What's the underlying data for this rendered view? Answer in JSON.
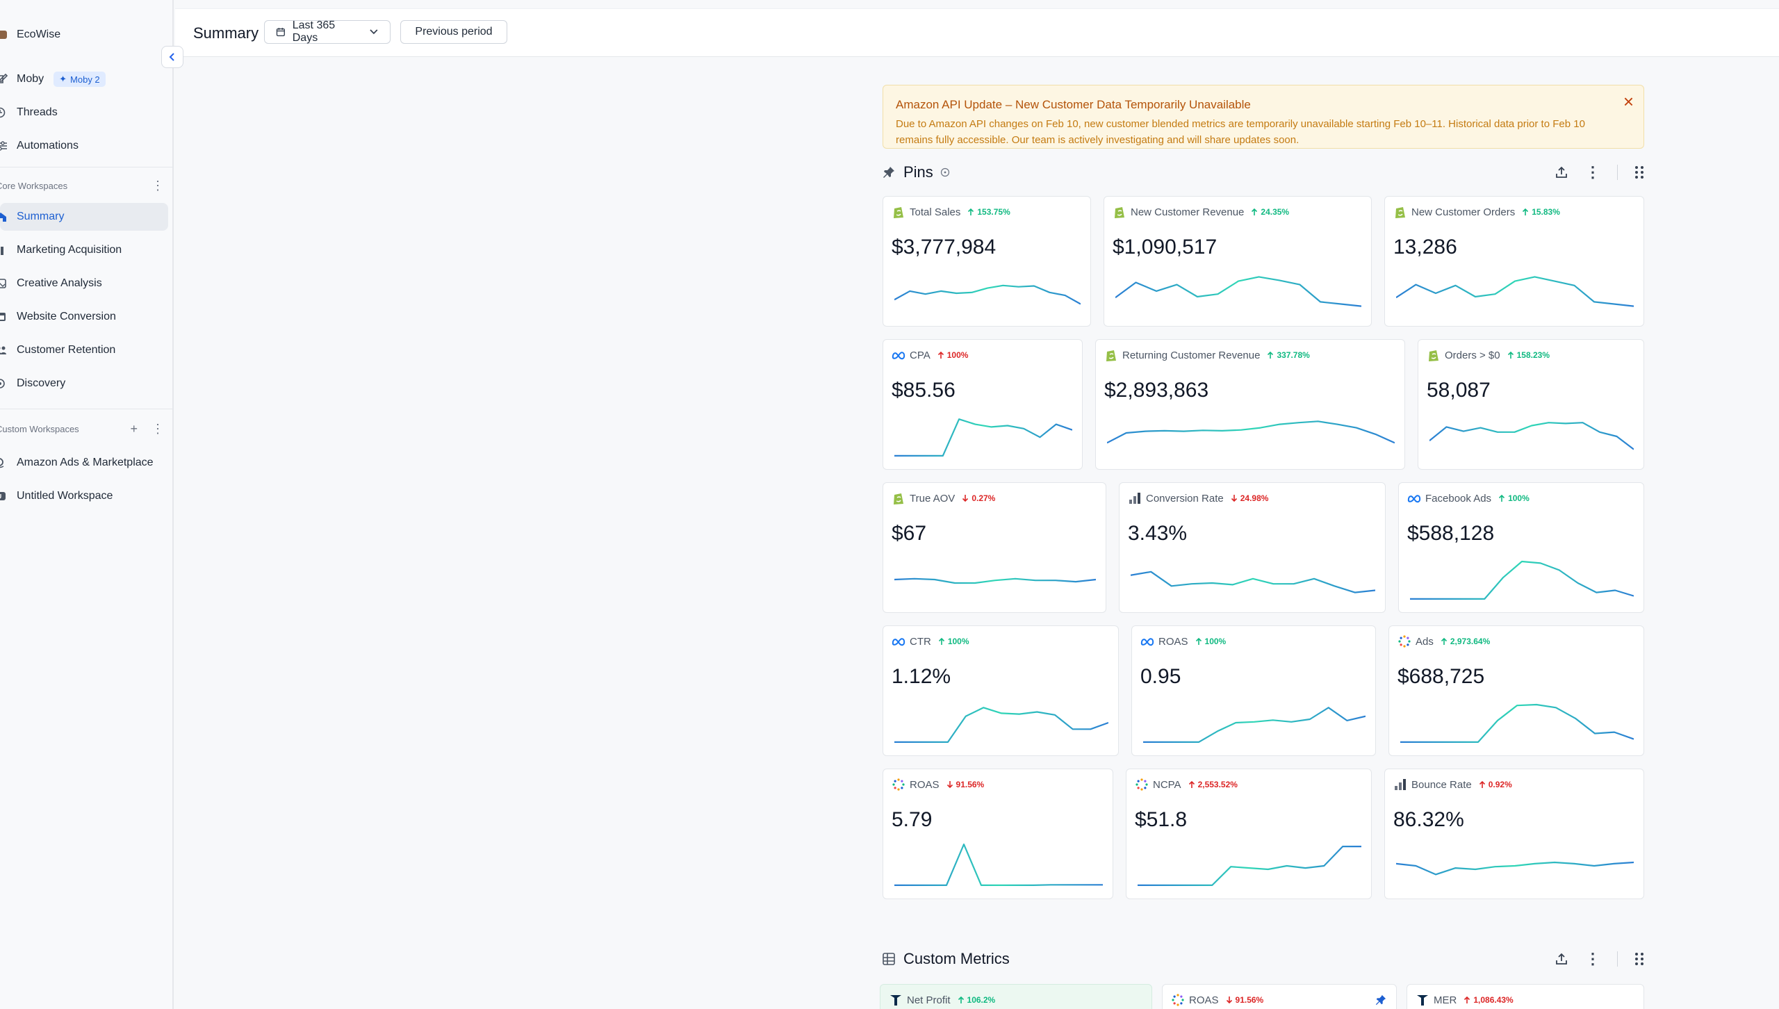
{
  "app": {
    "name": "EcoWise"
  },
  "sidebar": {
    "items": [
      {
        "label": "Moby",
        "badge": "Moby 2"
      },
      {
        "label": "Threads"
      },
      {
        "label": "Automations"
      }
    ],
    "core_title": "Core Workspaces",
    "core_items": [
      {
        "label": "Summary"
      },
      {
        "label": "Marketing Acquisition"
      },
      {
        "label": "Creative Analysis"
      },
      {
        "label": "Website Conversion"
      },
      {
        "label": "Customer Retention"
      },
      {
        "label": "Discovery"
      }
    ],
    "custom_title": "Custom Workspaces",
    "custom_items": [
      {
        "label": "Amazon Ads & Marketplace"
      },
      {
        "label": "Untitled Workspace"
      }
    ]
  },
  "header": {
    "title": "Summary",
    "date_range": "Last 365 Days",
    "compare": "Previous period"
  },
  "banner": {
    "title": "Amazon API Update – New Customer Data Temporarily Unavailable",
    "body": "Due to Amazon API changes on Feb 10, new customer blended metrics are temporarily unavailable starting Feb 10–11. Historical data prior to Feb 10 remains fully accessible. Our team is actively investigating and will share updates soon."
  },
  "pins": {
    "title": "Pins",
    "cards": [
      {
        "label": "Total Sales",
        "change": "153.75%",
        "dir": "up",
        "value": "$3,777,984",
        "source": "shopify",
        "trend": [
          0.35,
          0.55,
          0.48,
          0.55,
          0.5,
          0.52,
          0.62,
          0.68,
          0.65,
          0.67,
          0.52,
          0.45,
          0.25
        ]
      },
      {
        "label": "New Customer Revenue",
        "change": "24.35%",
        "dir": "up",
        "value": "$1,090,517",
        "source": "shopify",
        "trend": [
          0.4,
          0.75,
          0.55,
          0.7,
          0.42,
          0.48,
          0.78,
          0.88,
          0.8,
          0.7,
          0.3,
          0.25,
          0.2
        ]
      },
      {
        "label": "New Customer Orders",
        "change": "15.83%",
        "dir": "up",
        "value": "13,286",
        "source": "shopify",
        "trend": [
          0.4,
          0.7,
          0.5,
          0.68,
          0.42,
          0.48,
          0.78,
          0.88,
          0.78,
          0.68,
          0.3,
          0.25,
          0.2
        ]
      },
      {
        "label": "CPA",
        "change": "100%",
        "dir": "upbad",
        "value": "$85.56",
        "source": "meta",
        "trend": [
          0.05,
          0.05,
          0.05,
          0.05,
          0.9,
          0.78,
          0.72,
          0.75,
          0.68,
          0.48,
          0.78,
          0.65
        ]
      },
      {
        "label": "Returning Customer Revenue",
        "change": "337.78%",
        "dir": "up",
        "value": "$2,893,863",
        "source": "shopify",
        "trend": [
          0.35,
          0.58,
          0.62,
          0.63,
          0.62,
          0.64,
          0.63,
          0.65,
          0.7,
          0.78,
          0.82,
          0.85,
          0.78,
          0.7,
          0.55,
          0.35
        ]
      },
      {
        "label": "Orders > $0",
        "change": "158.23%",
        "dir": "up",
        "value": "58,087",
        "source": "shopify",
        "trend": [
          0.4,
          0.72,
          0.62,
          0.7,
          0.6,
          0.6,
          0.75,
          0.82,
          0.8,
          0.82,
          0.6,
          0.5,
          0.2
        ]
      },
      {
        "label": "True AOV",
        "change": "0.27%",
        "dir": "down",
        "value": "$67",
        "source": "shopify",
        "trend": [
          0.5,
          0.52,
          0.5,
          0.42,
          0.42,
          0.48,
          0.52,
          0.48,
          0.48,
          0.45,
          0.5
        ]
      },
      {
        "label": "Conversion Rate",
        "change": "24.98%",
        "dir": "down",
        "value": "3.43%",
        "source": "ga",
        "trend": [
          0.6,
          0.68,
          0.35,
          0.4,
          0.42,
          0.38,
          0.52,
          0.4,
          0.4,
          0.52,
          0.35,
          0.2,
          0.25
        ]
      },
      {
        "label": "Facebook Ads",
        "change": "100%",
        "dir": "up",
        "value": "$588,128",
        "source": "meta",
        "trend": [
          0.05,
          0.05,
          0.05,
          0.05,
          0.05,
          0.55,
          0.92,
          0.88,
          0.72,
          0.42,
          0.2,
          0.25,
          0.12
        ]
      },
      {
        "label": "CTR",
        "change": "100%",
        "dir": "up",
        "value": "1.12%",
        "source": "meta",
        "trend": [
          0.05,
          0.05,
          0.05,
          0.05,
          0.65,
          0.85,
          0.72,
          0.7,
          0.75,
          0.68,
          0.35,
          0.35,
          0.5
        ]
      },
      {
        "label": "ROAS",
        "change": "100%",
        "dir": "up",
        "value": "0.95",
        "source": "meta",
        "trend": [
          0.05,
          0.05,
          0.05,
          0.05,
          0.3,
          0.5,
          0.52,
          0.56,
          0.52,
          0.58,
          0.85,
          0.55,
          0.65
        ]
      },
      {
        "label": "Ads",
        "change": "2,973.64%",
        "dir": "up",
        "value": "$688,725",
        "source": "dots",
        "trend": [
          0.05,
          0.05,
          0.05,
          0.05,
          0.05,
          0.55,
          0.9,
          0.92,
          0.85,
          0.6,
          0.25,
          0.28,
          0.12
        ]
      },
      {
        "label": "ROAS",
        "change": "91.56%",
        "dir": "down",
        "value": "5.79",
        "source": "dots",
        "trend": [
          0.05,
          0.05,
          0.05,
          0.05,
          1.0,
          0.05,
          0.05,
          0.05,
          0.05,
          0.06,
          0.06,
          0.06,
          0.06
        ]
      },
      {
        "label": "NCPA",
        "change": "2,553.52%",
        "dir": "upbad",
        "value": "$51.8",
        "source": "dots",
        "trend": [
          0.05,
          0.05,
          0.05,
          0.05,
          0.05,
          0.48,
          0.45,
          0.42,
          0.5,
          0.45,
          0.5,
          0.95,
          0.95
        ]
      },
      {
        "label": "Bounce Rate",
        "change": "0.92%",
        "dir": "upbad",
        "value": "86.32%",
        "source": "ga",
        "trend": [
          0.55,
          0.5,
          0.3,
          0.45,
          0.42,
          0.48,
          0.5,
          0.55,
          0.58,
          0.55,
          0.5,
          0.55,
          0.58
        ]
      }
    ]
  },
  "custom_metrics": {
    "title": "Custom Metrics",
    "cards": [
      {
        "label": "Net Profit",
        "change": "106.2%",
        "dir": "up",
        "source": "tw"
      },
      {
        "label": "ROAS",
        "change": "91.56%",
        "dir": "down",
        "source": "dots"
      },
      {
        "label": "MER",
        "change": "1,086.43%",
        "dir": "upbad",
        "source": "tw"
      }
    ]
  },
  "colors": {
    "accent": "#1d5fd1",
    "positive": "#10b981",
    "negative": "#dc2626",
    "spark_start": "#2b7fd4",
    "spark_end": "#2fd6b6"
  }
}
